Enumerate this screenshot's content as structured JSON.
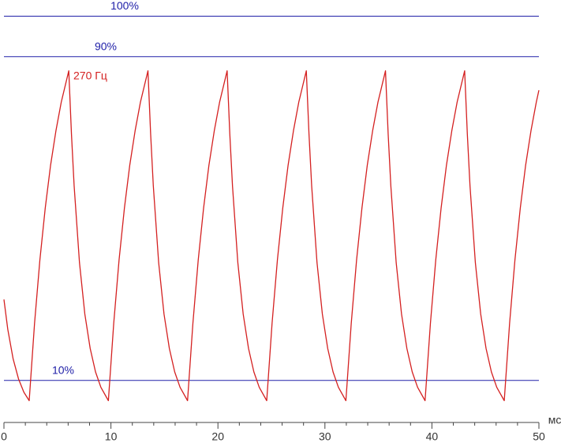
{
  "chart_data": {
    "type": "line",
    "x_unit_label": "мс",
    "annotation": "270 Гц",
    "xlim": [
      0,
      50
    ],
    "ylim": [
      0,
      104
    ],
    "xticks": [
      0,
      10,
      20,
      30,
      40,
      50
    ],
    "xminor_ticks": [
      2,
      4,
      6,
      8,
      12,
      14,
      16,
      18,
      22,
      24,
      26,
      28,
      32,
      34,
      36,
      38,
      42,
      44,
      46,
      48
    ],
    "reference_lines": [
      {
        "value": 100,
        "label": "100%"
      },
      {
        "value": 90,
        "label": "90%"
      },
      {
        "value": 10,
        "label": "10%"
      }
    ],
    "reference_color": "#2020a8",
    "x": [
      0,
      0.36,
      0.86,
      1.36,
      1.86,
      2.36,
      2.86,
      3.36,
      3.86,
      4.36,
      4.86,
      5.36,
      6.06,
      6.31,
      6.56,
      7.06,
      7.56,
      8.06,
      8.56,
      9.06,
      9.76,
      10.26,
      10.76,
      11.26,
      11.76,
      12.26,
      12.76,
      13.46,
      13.71,
      13.96,
      14.46,
      14.96,
      15.46,
      15.96,
      16.46,
      17.16,
      17.66,
      18.16,
      18.66,
      19.16,
      19.66,
      20.16,
      20.86,
      21.11,
      21.36,
      21.86,
      22.36,
      22.86,
      23.36,
      23.86,
      24.56,
      25.06,
      25.56,
      26.06,
      26.56,
      27.06,
      27.56,
      28.26,
      28.51,
      28.76,
      29.26,
      29.76,
      30.26,
      30.76,
      31.26,
      31.96,
      32.46,
      32.96,
      33.46,
      33.96,
      34.46,
      34.96,
      35.66,
      35.91,
      36.16,
      36.66,
      37.16,
      37.66,
      38.16,
      38.66,
      39.36,
      39.86,
      40.36,
      40.86,
      41.36,
      41.86,
      42.36,
      43.06,
      43.31,
      43.56,
      44.06,
      44.56,
      45.06,
      45.56,
      46.06,
      46.76,
      47.26,
      47.76,
      48.26,
      48.76,
      49.26,
      49.76,
      50
    ],
    "series": [
      {
        "color": "#d42020",
        "values": [
          30,
          22.6,
          15.3,
          10.4,
          7.1,
          5,
          24.1,
          39.8,
          52.6,
          63.2,
          71.7,
          78.8,
          86.5,
          70.9,
          58.1,
          39.1,
          26.4,
          17.9,
          12.1,
          8.3,
          5,
          24.1,
          39.8,
          52.6,
          63.2,
          71.7,
          78.8,
          86.5,
          70.9,
          58.1,
          39.1,
          26.4,
          17.9,
          12.1,
          8.3,
          5,
          24.1,
          39.8,
          52.6,
          63.2,
          71.7,
          78.8,
          86.5,
          70.9,
          58.1,
          39.1,
          26.4,
          17.9,
          12.1,
          8.3,
          5,
          24.1,
          39.8,
          52.6,
          63.2,
          71.7,
          78.8,
          86.5,
          70.9,
          58.1,
          39.1,
          26.4,
          17.9,
          12.1,
          8.3,
          5,
          24.1,
          39.8,
          52.6,
          63.2,
          71.7,
          78.8,
          86.5,
          70.9,
          58.1,
          39.1,
          26.4,
          17.9,
          12.1,
          8.3,
          5,
          24.1,
          39.8,
          52.6,
          63.2,
          71.7,
          78.8,
          86.5,
          70.9,
          58.1,
          39.1,
          26.4,
          17.9,
          12.1,
          8.3,
          5,
          24.1,
          39.8,
          52.6,
          63.2,
          71.7,
          78.8,
          81.7
        ]
      }
    ]
  }
}
